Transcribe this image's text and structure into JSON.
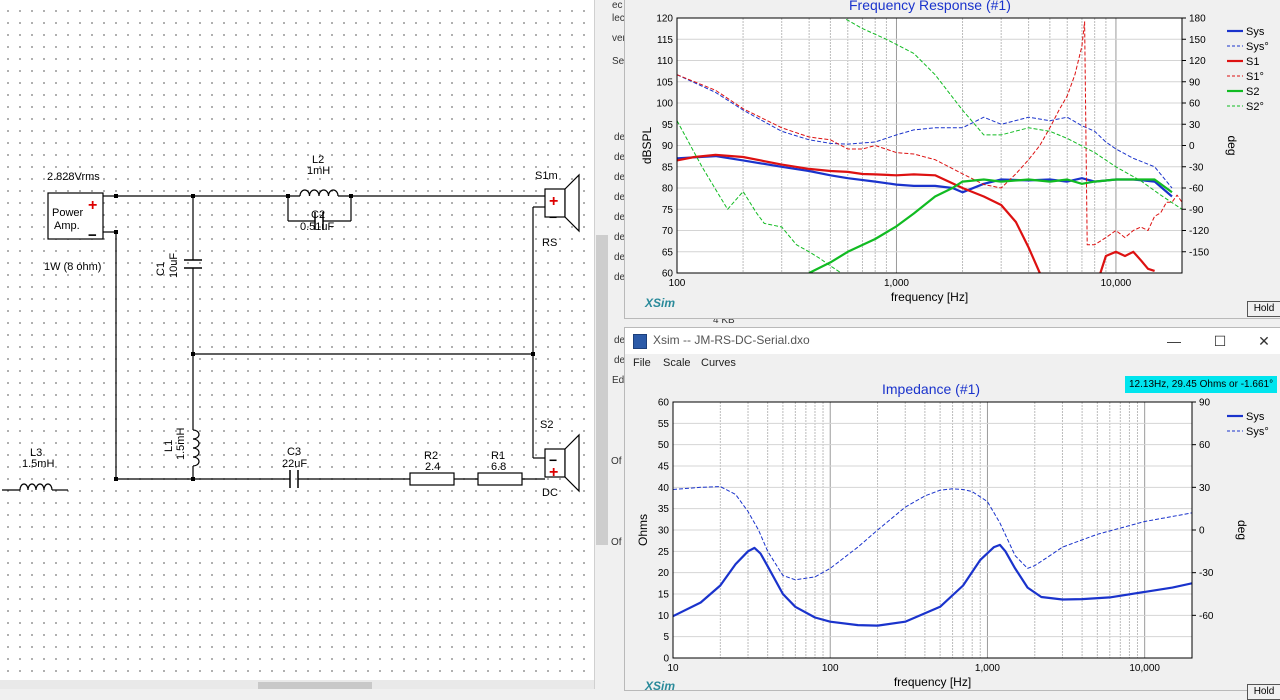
{
  "schematic": {
    "source": {
      "voltage": "2.828Vrms",
      "label": "Power Amp.",
      "plus": "+",
      "minus": "−",
      "rating": "1W (8 ohm)"
    },
    "components": {
      "L2": {
        "name": "L2",
        "value": "1mH"
      },
      "C2": {
        "name": "C2",
        "value": "0.51uF"
      },
      "C1": {
        "name": "C1",
        "value": "10uF"
      },
      "L1": {
        "name": "L1",
        "value": "1.5mH"
      },
      "L3": {
        "name": "L3",
        "value": "1.5mH"
      },
      "C3": {
        "name": "C3",
        "value": "22uF"
      },
      "R2": {
        "name": "R2",
        "value": "2.4"
      },
      "R1": {
        "name": "R1",
        "value": "6.8"
      }
    },
    "speakers": [
      {
        "name": "S1m",
        "desc": "RS"
      },
      {
        "name": "S2",
        "desc": "DC"
      }
    ]
  },
  "background_labels": [
    "ec",
    "lect",
    "vert",
    "Sel",
    "de",
    "de",
    "de",
    "de",
    "de",
    "de",
    "de",
    "de",
    "4 KB",
    "de",
    "de",
    "Ed",
    "Of",
    "Of"
  ],
  "freq_window": {
    "title": "Frequency Response (#1)",
    "logo": "XSim",
    "hold": "Hold",
    "legend": [
      {
        "name": "Sys",
        "color": "#1a33cc",
        "dashed": false
      },
      {
        "name": "Sys°",
        "color": "#1a33cc",
        "dashed": true
      },
      {
        "name": "S1",
        "color": "#dd1111",
        "dashed": false
      },
      {
        "name": "S1°",
        "color": "#dd1111",
        "dashed": true
      },
      {
        "name": "S2",
        "color": "#11bb22",
        "dashed": false
      },
      {
        "name": "S2°",
        "color": "#11bb22",
        "dashed": true
      }
    ]
  },
  "imp_window": {
    "window_title": "Xsim -- JM-RS-DC-Serial.dxo",
    "minimize": "—",
    "maximize": "☐",
    "close": "✕",
    "menus": [
      "File",
      "Scale",
      "Curves"
    ],
    "title": "Impedance (#1)",
    "cursor_readout": "12.13Hz, 29.45 Ohms or -1.661°",
    "logo": "XSim",
    "hold": "Hold",
    "legend": [
      {
        "name": "Sys",
        "color": "#1a33cc",
        "dashed": false
      },
      {
        "name": "Sys°",
        "color": "#1a33cc",
        "dashed": true
      }
    ]
  },
  "chart_data": [
    {
      "type": "line",
      "title": "Frequency Response (#1)",
      "xlabel": "frequency [Hz]",
      "ylabel": "dBSPL",
      "y2label": "deg",
      "xscale": "log",
      "xlim": [
        100,
        20000
      ],
      "ylim": [
        60,
        120
      ],
      "y2lim": [
        -180,
        180
      ],
      "x_tick_labels": [
        "100",
        "1,000",
        "10,000"
      ],
      "y_ticks": [
        60,
        65,
        70,
        75,
        80,
        85,
        90,
        95,
        100,
        105,
        110,
        115,
        120
      ],
      "y2_ticks": [
        -150,
        -120,
        -90,
        -60,
        -30,
        0,
        30,
        60,
        90,
        120,
        150,
        180
      ],
      "grid": true,
      "legend": "right",
      "series": [
        {
          "name": "Sys",
          "axis": "left",
          "color": "#1a33cc",
          "dashed": false,
          "width": 2.2,
          "x": [
            100,
            150,
            200,
            300,
            400,
            500,
            600,
            800,
            1000,
            1200,
            1500,
            1800,
            2000,
            2500,
            3000,
            4000,
            5000,
            6000,
            7000,
            8000,
            10000,
            12000,
            15000,
            18000
          ],
          "y": [
            87,
            87.5,
            86.5,
            85,
            84,
            83,
            82.3,
            81.5,
            80.8,
            80.5,
            80.5,
            80,
            79,
            81,
            82,
            81.8,
            82,
            81.5,
            82.3,
            81.5,
            82,
            82,
            81.5,
            78
          ]
        },
        {
          "name": "Sys°",
          "axis": "right",
          "color": "#1a33cc",
          "dashed": true,
          "width": 1,
          "x": [
            100,
            150,
            200,
            300,
            400,
            500,
            600,
            800,
            1000,
            1200,
            1500,
            2000,
            2500,
            3000,
            4000,
            5000,
            6000,
            7000,
            8000,
            9000,
            10000,
            12000,
            15000,
            18000
          ],
          "y": [
            100,
            75,
            50,
            20,
            8,
            3,
            2,
            5,
            15,
            22,
            25,
            25,
            40,
            30,
            40,
            35,
            40,
            28,
            20,
            5,
            -5,
            -18,
            -30,
            -60
          ]
        },
        {
          "name": "S1",
          "axis": "left",
          "color": "#dd1111",
          "dashed": false,
          "width": 2.2,
          "x": [
            100,
            120,
            150,
            200,
            300,
            400,
            500,
            600,
            700,
            800,
            1000,
            1200,
            1500,
            2000,
            2500,
            3000,
            3500,
            4000,
            4500
          ],
          "y": [
            86.5,
            87.3,
            87.8,
            87.3,
            85.5,
            84.5,
            84,
            83.8,
            83.3,
            83.2,
            83,
            83.2,
            83,
            80,
            78,
            76,
            72,
            66,
            60
          ]
        },
        {
          "name": "S1",
          "axis": "left",
          "color": "#dd1111",
          "dashed": false,
          "width": 2.2,
          "x": [
            8500,
            9000,
            10000,
            11000,
            12000,
            13000,
            14000,
            15000
          ],
          "y": [
            60,
            64,
            65,
            64,
            65,
            63,
            61,
            60.5
          ]
        },
        {
          "name": "S1°",
          "axis": "right",
          "color": "#dd1111",
          "dashed": true,
          "width": 1,
          "x": [
            100,
            150,
            200,
            300,
            400,
            500,
            600,
            700,
            800,
            1000,
            1200,
            1500,
            2000,
            2500,
            3000,
            3500,
            4000,
            4500,
            5000,
            5500,
            6000,
            6500,
            7000,
            7200
          ],
          "y": [
            100,
            78,
            52,
            25,
            12,
            8,
            -5,
            -5,
            0,
            -10,
            -12,
            -20,
            -40,
            -55,
            -60,
            -40,
            -20,
            0,
            25,
            50,
            70,
            100,
            140,
            175
          ]
        },
        {
          "name": "S1°",
          "axis": "right",
          "color": "#dd1111",
          "dashed": true,
          "width": 1,
          "x": [
            7200,
            7400,
            8000,
            9000,
            10000,
            11000,
            12000,
            13000,
            14000,
            15000,
            16000,
            17000,
            18000,
            19000,
            20000
          ],
          "y": [
            175,
            -140,
            -140,
            -130,
            -120,
            -130,
            -120,
            -115,
            -120,
            -100,
            -95,
            -80,
            -80,
            -70,
            -80
          ]
        },
        {
          "name": "S2",
          "axis": "left",
          "color": "#11bb22",
          "dashed": false,
          "width": 2.2,
          "x": [
            400,
            500,
            600,
            800,
            1000,
            1200,
            1500,
            1800,
            2000,
            2500,
            3000,
            4000,
            5000,
            6000,
            7000,
            8000,
            10000,
            12000,
            15000,
            18000
          ],
          "y": [
            60,
            62.5,
            65,
            68,
            71,
            74,
            78,
            80,
            81.5,
            82,
            81.5,
            82,
            81.5,
            82,
            81,
            81.5,
            82,
            82,
            82,
            79
          ]
        },
        {
          "name": "S2°",
          "axis": "right",
          "color": "#11bb22",
          "dashed": true,
          "width": 1,
          "x": [
            100,
            130,
            170,
            200,
            230,
            250,
            300,
            350,
            400,
            450,
            500,
            560
          ],
          "y": [
            35,
            -30,
            -90,
            -65,
            -95,
            -110,
            -115,
            -140,
            -150,
            -160,
            -170,
            -180
          ]
        },
        {
          "name": "S2°",
          "axis": "right",
          "color": "#11bb22",
          "dashed": true,
          "width": 1,
          "x": [
            590,
            700,
            900,
            1200,
            1500,
            2000,
            2500,
            3000,
            4000,
            5000,
            6000,
            8000,
            10000,
            13000,
            16000,
            20000
          ],
          "y": [
            178,
            165,
            150,
            130,
            100,
            50,
            15,
            15,
            25,
            20,
            10,
            -10,
            -30,
            -50,
            -70,
            -90
          ]
        }
      ]
    },
    {
      "type": "line",
      "title": "Impedance (#1)",
      "xlabel": "frequency [Hz]",
      "ylabel": "Ohms",
      "y2label": "deg",
      "xscale": "log",
      "xlim": [
        10,
        20000
      ],
      "ylim": [
        0,
        60
      ],
      "y2lim": [
        -90,
        90
      ],
      "x_tick_labels": [
        "10",
        "100",
        "1,000",
        "10,000"
      ],
      "y_ticks": [
        0,
        5,
        10,
        15,
        20,
        25,
        30,
        35,
        40,
        45,
        50,
        55,
        60
      ],
      "y2_ticks": [
        -60,
        -30,
        0,
        30,
        60,
        90
      ],
      "grid": true,
      "legend": "right",
      "series": [
        {
          "name": "Sys",
          "axis": "left",
          "color": "#1a33cc",
          "dashed": false,
          "width": 2.2,
          "x": [
            10,
            15,
            20,
            25,
            30,
            33,
            36,
            40,
            50,
            60,
            80,
            100,
            150,
            200,
            300,
            500,
            700,
            900,
            1100,
            1200,
            1300,
            1500,
            1800,
            2200,
            3000,
            4000,
            6000,
            10000,
            15000,
            20000
          ],
          "y": [
            9.8,
            13,
            17,
            22,
            25,
            25.8,
            24.5,
            21.5,
            15,
            12,
            9.5,
            8.5,
            7.7,
            7.6,
            8.5,
            12,
            17,
            23,
            26,
            26.5,
            25,
            21,
            16.5,
            14.3,
            13.7,
            13.8,
            14.2,
            15.5,
            16.5,
            17.5
          ]
        },
        {
          "name": "Sys°",
          "axis": "right",
          "color": "#1a33cc",
          "dashed": true,
          "width": 1,
          "x": [
            10,
            15,
            20,
            25,
            30,
            35,
            40,
            50,
            60,
            80,
            100,
            150,
            200,
            300,
            400,
            500,
            600,
            700,
            800,
            1000,
            1200,
            1500,
            1800,
            2000,
            2500,
            3000,
            5000,
            10000,
            20000
          ],
          "y": [
            28.5,
            30,
            30.5,
            25,
            13,
            0,
            -15,
            -32,
            -35,
            -33,
            -27,
            -12,
            0,
            16,
            24,
            28,
            29,
            28.5,
            27,
            20,
            5,
            -18,
            -27,
            -25,
            -18,
            -12,
            -3,
            6,
            12
          ]
        }
      ]
    }
  ]
}
